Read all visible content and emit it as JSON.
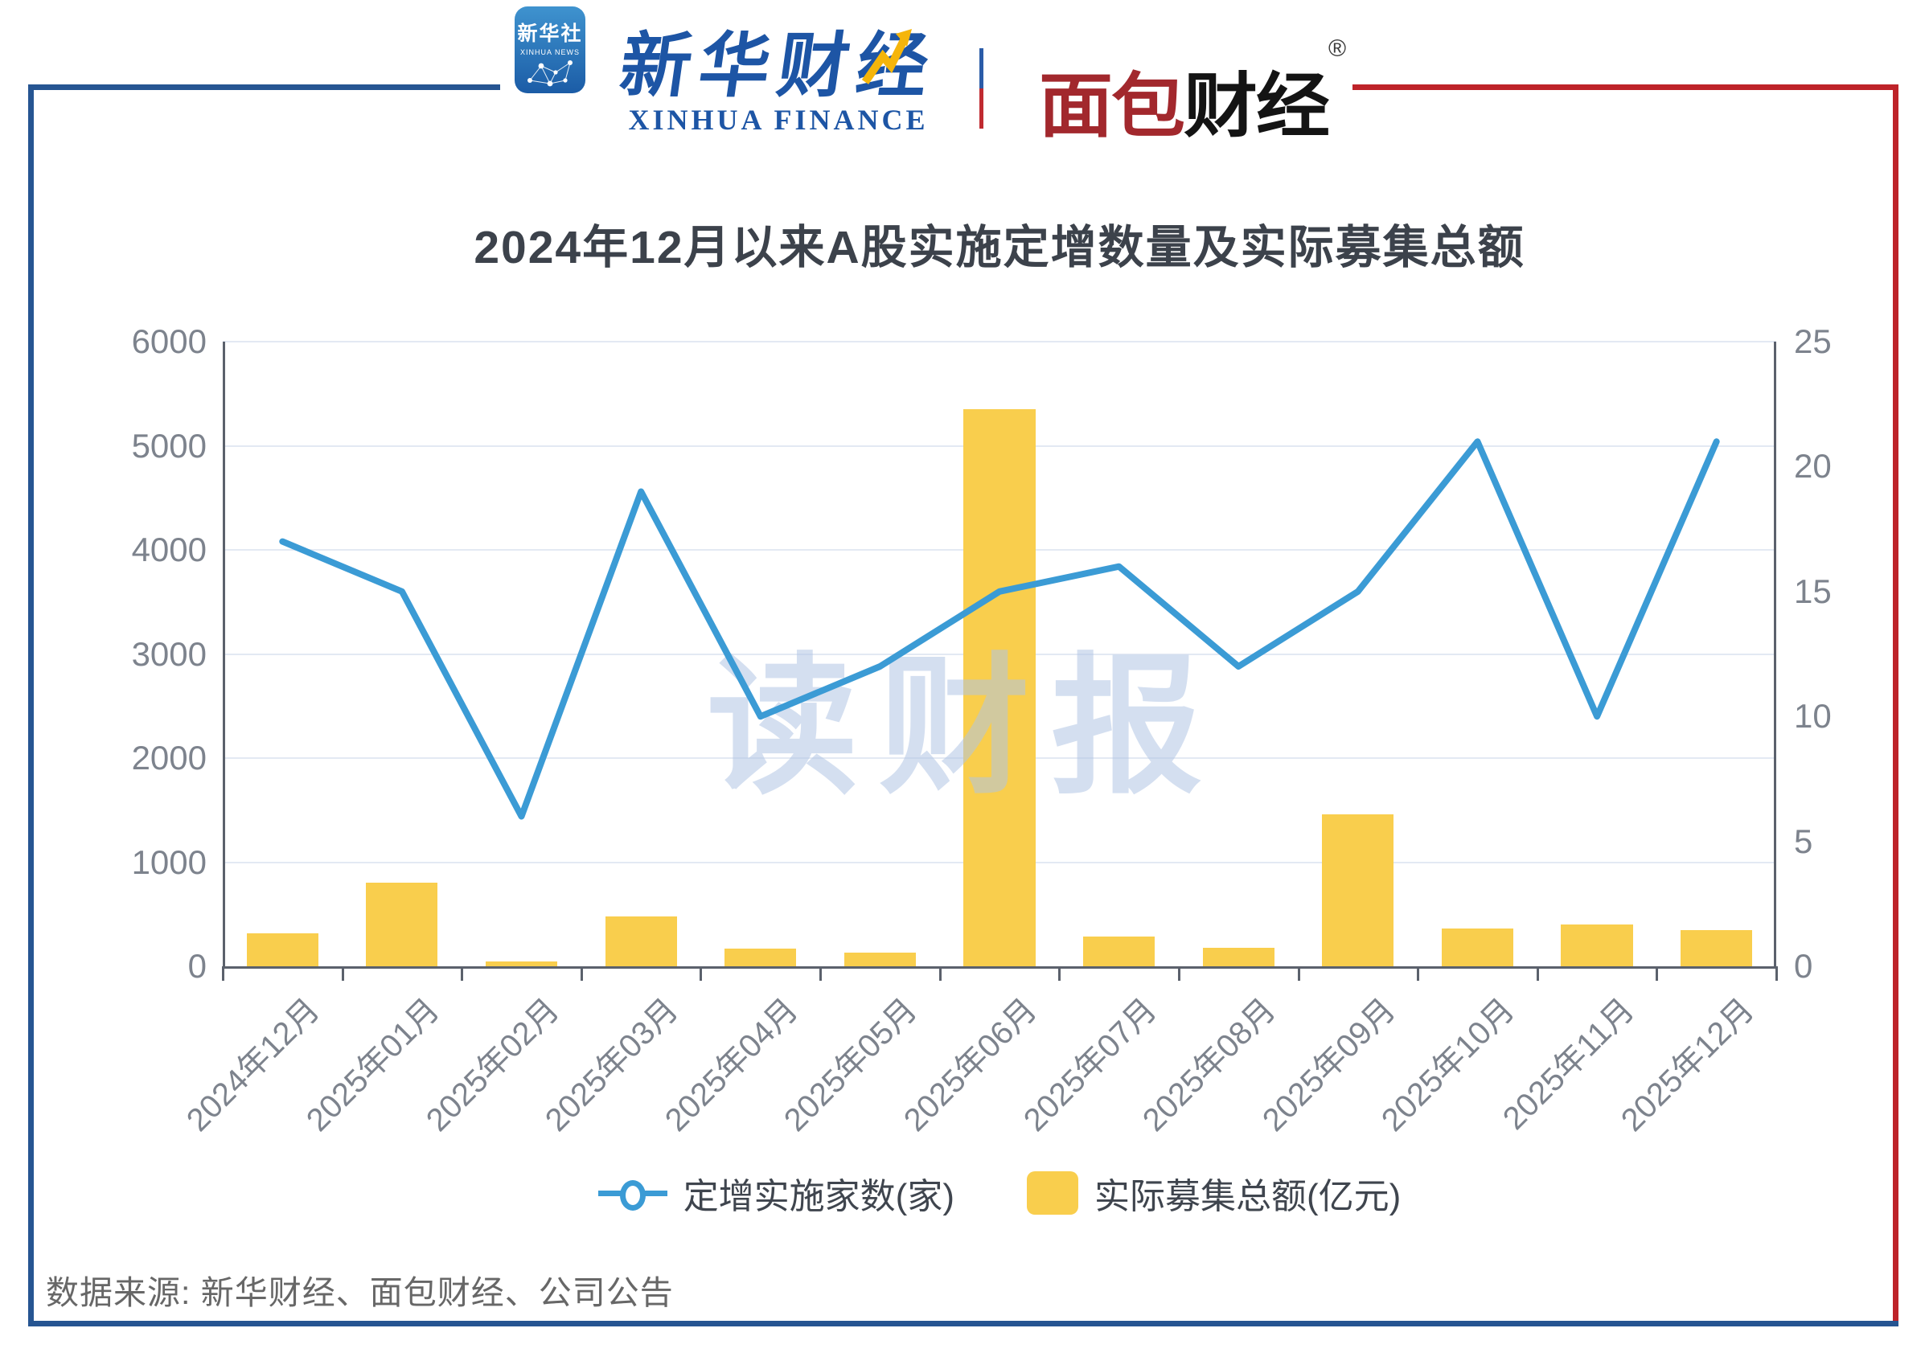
{
  "header": {
    "xinhua_icon": {
      "line1": "新华社",
      "line2": "XINHUA NEWS"
    },
    "xinhua_finance": {
      "cn": "新华财经",
      "en": "XINHUA FINANCE"
    },
    "bread_finance": {
      "part1": "面包",
      "part2": "财经",
      "reg": "®"
    }
  },
  "colors": {
    "line_blue": "#3b9bd5",
    "bar_yellow": "#f9ce4d",
    "frame_blue": "#265592",
    "frame_red": "#be2329",
    "gridline": "#e3e9f3",
    "axis": "#5b616c",
    "tick_text": "#7d838d",
    "title_text": "#3c424b",
    "watermark_text": "#b0c5e4"
  },
  "chart": {
    "watermark": "读财报"
  },
  "chart_data": {
    "type": "line+bar combo, dual axis",
    "title": "2024年12月以来A股实施定增数量及实际募集总额",
    "categories": [
      "2024年12月",
      "2025年01月",
      "2025年02月",
      "2025年03月",
      "2025年04月",
      "2025年05月",
      "2025年06月",
      "2025年07月",
      "2025年08月",
      "2025年09月",
      "2025年10月",
      "2025年11月",
      "2025年12月"
    ],
    "series": [
      {
        "name": "定增实施家数(家)",
        "type": "line",
        "axis": "right",
        "color": "#3b9bd5",
        "values": [
          17,
          15,
          6,
          19,
          10,
          12,
          15,
          16,
          12,
          15,
          21,
          10,
          21
        ]
      },
      {
        "name": "实际募集总额(亿元)",
        "type": "bar",
        "axis": "left",
        "color": "#f9ce4d",
        "values": [
          320,
          800,
          50,
          480,
          170,
          130,
          5350,
          285,
          175,
          1460,
          360,
          405,
          345
        ]
      }
    ],
    "left_axis": {
      "min": 0,
      "max": 6000,
      "ticks": [
        0,
        1000,
        2000,
        3000,
        4000,
        5000,
        6000
      ]
    },
    "right_axis": {
      "min": 0,
      "max": 25,
      "ticks": [
        0,
        5,
        10,
        15,
        20,
        25
      ]
    },
    "grid": "horizontal gridlines at left-axis 1000 intervals",
    "legend_position": "bottom center"
  },
  "footer": {
    "source": "数据来源: 新华财经、面包财经、公司公告"
  }
}
